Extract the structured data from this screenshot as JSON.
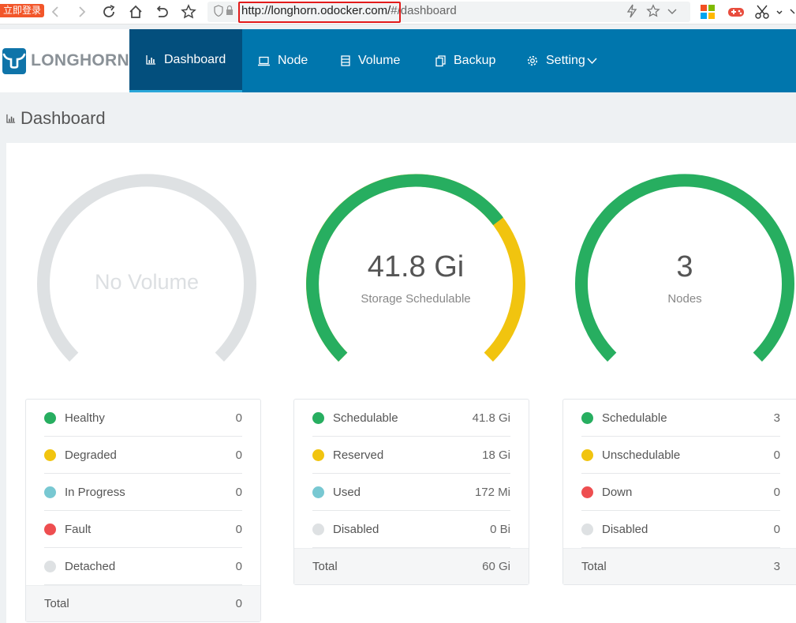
{
  "browser": {
    "login_badge": "立即登录",
    "url_host": "http://longhorn.odocker.com/",
    "url_path": "#/dashboard"
  },
  "app": {
    "logo_text": "LONGHORN",
    "nav": [
      {
        "label": "Dashboard",
        "icon": "bar-chart-icon",
        "active": true
      },
      {
        "label": "Node",
        "icon": "laptop-icon",
        "active": false
      },
      {
        "label": "Volume",
        "icon": "volume-icon",
        "active": false
      },
      {
        "label": "Backup",
        "icon": "copy-icon",
        "active": false
      },
      {
        "label": "Setting",
        "icon": "gear-icon",
        "active": false
      }
    ]
  },
  "page": {
    "title": "Dashboard"
  },
  "colors": {
    "brand": "#0076ad",
    "healthy": "#27ae60",
    "degraded": "#f1c40f",
    "progress": "#78c8d2",
    "fault": "#ee4e50",
    "disabled": "#dee1e3"
  },
  "volume": {
    "gauge_text": "No Volume",
    "rows": [
      {
        "label": "Healthy",
        "value": "0",
        "color": "#27ae60"
      },
      {
        "label": "Degraded",
        "value": "0",
        "color": "#f1c40f"
      },
      {
        "label": "In Progress",
        "value": "0",
        "color": "#78c8d2"
      },
      {
        "label": "Fault",
        "value": "0",
        "color": "#ee4e50"
      },
      {
        "label": "Detached",
        "value": "0",
        "color": "#dee1e3"
      }
    ],
    "total_label": "Total",
    "total_value": "0"
  },
  "storage": {
    "gauge_value": "41.8 Gi",
    "gauge_label": "Storage Schedulable",
    "rows": [
      {
        "label": "Schedulable",
        "value": "41.8 Gi",
        "color": "#27ae60"
      },
      {
        "label": "Reserved",
        "value": "18 Gi",
        "color": "#f1c40f"
      },
      {
        "label": "Used",
        "value": "172 Mi",
        "color": "#78c8d2"
      },
      {
        "label": "Disabled",
        "value": "0 Bi",
        "color": "#dee1e3"
      }
    ],
    "total_label": "Total",
    "total_value": "60 Gi"
  },
  "nodes": {
    "gauge_value": "3",
    "gauge_label": "Nodes",
    "rows": [
      {
        "label": "Schedulable",
        "value": "3",
        "color": "#27ae60"
      },
      {
        "label": "Unschedulable",
        "value": "0",
        "color": "#f1c40f"
      },
      {
        "label": "Down",
        "value": "0",
        "color": "#ee4e50"
      },
      {
        "label": "Disabled",
        "value": "0",
        "color": "#dee1e3"
      }
    ],
    "total_label": "Total",
    "total_value": "3"
  }
}
